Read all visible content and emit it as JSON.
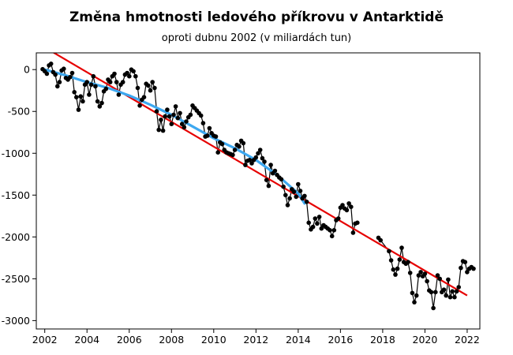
{
  "chart_data": {
    "type": "line",
    "title": "Změna hmotnosti ledového příkrovu v Antarktidě",
    "subtitle": "oproti dubnu 2002 (v miliardách tun)",
    "xlim": [
      2001.6,
      2022.6
    ],
    "ylim": [
      -3100,
      200
    ],
    "x_ticks": [
      2002,
      2004,
      2006,
      2008,
      2010,
      2012,
      2014,
      2016,
      2018,
      2020,
      2022
    ],
    "y_ticks": [
      0,
      -500,
      -1000,
      -1500,
      -2000,
      -2500,
      -3000
    ],
    "grid": false,
    "series": [
      {
        "kind": "measurements",
        "color": "#000000",
        "x": [
          2001.9,
          2002.0,
          2002.1,
          2002.2,
          2002.3,
          2002.4,
          2002.5,
          2002.6,
          2002.7,
          2002.8,
          2002.9,
          2003.0,
          2003.1,
          2003.2,
          2003.3,
          2003.4,
          2003.5,
          2003.6,
          2003.7,
          2003.8,
          2003.9,
          2004.0,
          2004.1,
          2004.2,
          2004.3,
          2004.4,
          2004.5,
          2004.6,
          2004.7,
          2004.8,
          2004.9,
          2005.0,
          2005.1,
          2005.2,
          2005.3,
          2005.4,
          2005.5,
          2005.6,
          2005.7,
          2005.8,
          2005.9,
          2006.0,
          2006.1,
          2006.2,
          2006.3,
          2006.4,
          2006.5,
          2006.6,
          2006.7,
          2006.8,
          2006.9,
          2007.0,
          2007.1,
          2007.2,
          2007.3,
          2007.4,
          2007.5,
          2007.6,
          2007.7,
          2007.8,
          2007.9,
          2008.0,
          2008.1,
          2008.2,
          2008.3,
          2008.4,
          2008.5,
          2008.6,
          2008.7,
          2008.8,
          2008.9,
          2009.0,
          2009.1,
          2009.2,
          2009.3,
          2009.4,
          2009.5,
          2009.6,
          2009.7,
          2009.8,
          2009.9,
          2010.0,
          2010.1,
          2010.2,
          2010.3,
          2010.4,
          2010.5,
          2010.6,
          2010.7,
          2010.8,
          2010.9,
          2011.0,
          2011.1,
          2011.2,
          2011.3,
          2011.4,
          2011.5,
          2011.6,
          2011.7,
          2011.8,
          2011.9,
          2012.0,
          2012.1,
          2012.2,
          2012.3,
          2012.4,
          2012.5,
          2012.6,
          2012.7,
          2012.8,
          2012.9,
          2013.0,
          2013.1,
          2013.2,
          2013.3,
          2013.4,
          2013.5,
          2013.6,
          2013.7,
          2013.8,
          2013.9,
          2014.0,
          2014.1,
          2014.2,
          2014.3,
          2014.4,
          2014.5,
          2014.6,
          2014.7,
          2014.8,
          2014.9,
          2015.0,
          2015.1,
          2015.2,
          2015.3,
          2015.4,
          2015.5,
          2015.6,
          2015.7,
          2015.8,
          2015.9,
          2016.0,
          2016.1,
          2016.2,
          2016.3,
          2016.4,
          2016.5,
          2016.6,
          2016.7,
          2016.8
        ],
        "y": [
          5,
          -20,
          -50,
          50,
          70,
          -30,
          -60,
          -200,
          -150,
          -10,
          10,
          -100,
          -120,
          -90,
          -40,
          -270,
          -330,
          -480,
          -320,
          -380,
          -180,
          -150,
          -300,
          -180,
          -80,
          -200,
          -380,
          -440,
          -400,
          -260,
          -230,
          -120,
          -150,
          -80,
          -50,
          -150,
          -300,
          -180,
          -150,
          -60,
          -40,
          -80,
          0,
          -20,
          -80,
          -220,
          -430,
          -360,
          -330,
          -170,
          -190,
          -250,
          -150,
          -220,
          -500,
          -720,
          -600,
          -730,
          -560,
          -480,
          -560,
          -650,
          -540,
          -440,
          -580,
          -520,
          -650,
          -690,
          -620,
          -570,
          -540,
          -430,
          -460,
          -490,
          -520,
          -550,
          -640,
          -800,
          -790,
          -700,
          -760,
          -790,
          -800,
          -990,
          -870,
          -890,
          -960,
          -990,
          -1000,
          -1010,
          -1020,
          -960,
          -900,
          -920,
          -850,
          -880,
          -1140,
          -1090,
          -1080,
          -1120,
          -1080,
          -1050,
          -1000,
          -960,
          -1060,
          -1100,
          -1320,
          -1390,
          -1140,
          -1240,
          -1210,
          -1260,
          -1290,
          -1310,
          -1400,
          -1500,
          -1620,
          -1540,
          -1430,
          -1460,
          -1520,
          -1370,
          -1450,
          -1540,
          -1510,
          -1580,
          -1830,
          -1910,
          -1880,
          -1780,
          -1840,
          -1760,
          -1900,
          -1860,
          -1880,
          -1900,
          -1920,
          -1990,
          -1920,
          -1800,
          -1780,
          -1650,
          -1620,
          -1660,
          -1680,
          -1600,
          -1640,
          -1950,
          -1840,
          -1830
        ],
        "segments": [
          {
            "x": [
              2017.8,
              2017.9,
              2018.3,
              2018.4,
              2018.5,
              2018.6,
              2018.7,
              2018.8,
              2018.9,
              2019.0,
              2019.1,
              2019.2,
              2019.3,
              2019.4,
              2019.5,
              2019.6,
              2019.7,
              2019.8,
              2019.9,
              2020.0,
              2020.1,
              2020.2,
              2020.3,
              2020.4,
              2020.5,
              2020.6,
              2020.7,
              2020.8,
              2020.9,
              2021.0,
              2021.1,
              2021.2,
              2021.3,
              2021.4,
              2021.5,
              2021.6,
              2021.7,
              2021.8,
              2021.9,
              2022.0,
              2022.1,
              2022.2,
              2022.3
            ],
            "y": [
              -2010,
              -2040,
              -2170,
              -2280,
              -2390,
              -2450,
              -2380,
              -2270,
              -2130,
              -2300,
              -2320,
              -2300,
              -2430,
              -2670,
              -2780,
              -2700,
              -2460,
              -2420,
              -2470,
              -2440,
              -2530,
              -2640,
              -2660,
              -2850,
              -2660,
              -2460,
              -2500,
              -2660,
              -2630,
              -2700,
              -2510,
              -2720,
              -2650,
              -2720,
              -2650,
              -2600,
              -2370,
              -2290,
              -2300,
              -2420,
              -2380,
              -2360,
              -2380
            ]
          }
        ]
      },
      {
        "kind": "smoothed",
        "color": "#3da8f0",
        "x": [
          2002.0,
          2003.0,
          2004.0,
          2005.0,
          2006.0,
          2007.0,
          2008.0,
          2009.0,
          2010.0,
          2011.0,
          2012.0,
          2013.0,
          2014.0,
          2014.3
        ],
        "y": [
          0,
          -70,
          -150,
          -220,
          -310,
          -420,
          -540,
          -680,
          -820,
          -940,
          -1080,
          -1260,
          -1480,
          -1600
        ]
      },
      {
        "kind": "trend",
        "color": "#e60000",
        "x": [
          2001.9,
          2022.0
        ],
        "y": [
          280,
          -2700
        ]
      }
    ]
  }
}
